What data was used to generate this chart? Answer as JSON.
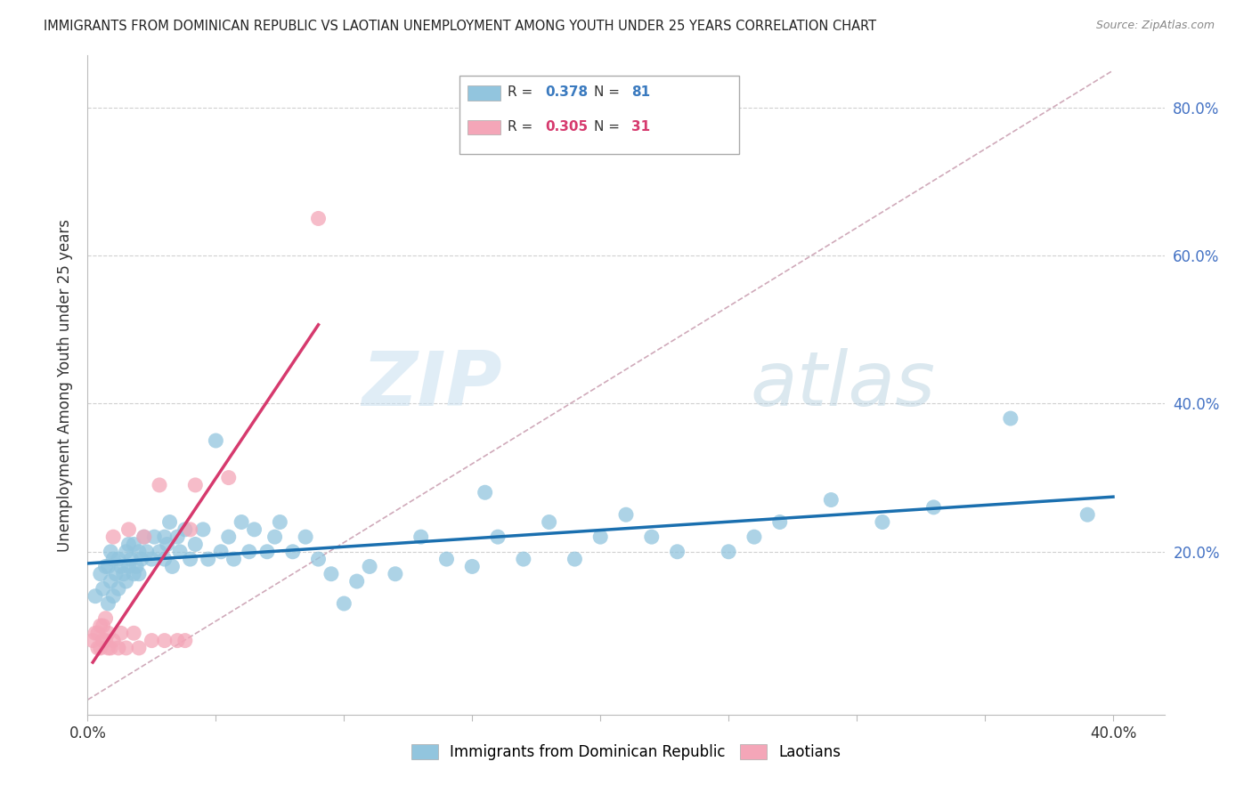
{
  "title": "IMMIGRANTS FROM DOMINICAN REPUBLIC VS LAOTIAN UNEMPLOYMENT AMONG YOUTH UNDER 25 YEARS CORRELATION CHART",
  "source": "Source: ZipAtlas.com",
  "ylabel": "Unemployment Among Youth under 25 years",
  "xlim": [
    0.0,
    0.42
  ],
  "ylim": [
    -0.02,
    0.87
  ],
  "yticks": [
    0.2,
    0.4,
    0.6,
    0.8
  ],
  "ytick_labels": [
    "20.0%",
    "40.0%",
    "60.0%",
    "80.0%"
  ],
  "xticks": [
    0.0,
    0.05,
    0.1,
    0.15,
    0.2,
    0.25,
    0.3,
    0.35,
    0.4
  ],
  "xtick_labels": [
    "0.0%",
    "",
    "",
    "",
    "",
    "",
    "",
    "",
    "40.0%"
  ],
  "blue_color": "#92c5de",
  "pink_color": "#f4a6b8",
  "blue_line_color": "#1a6faf",
  "pink_line_color": "#d63a6e",
  "grid_color": "#d0d0d0",
  "diagonal_color": "#d0aaba",
  "legend_R_blue": "0.378",
  "legend_N_blue": "81",
  "legend_R_pink": "0.305",
  "legend_N_pink": "31",
  "blue_scatter_x": [
    0.003,
    0.005,
    0.006,
    0.007,
    0.008,
    0.008,
    0.009,
    0.009,
    0.01,
    0.01,
    0.011,
    0.012,
    0.012,
    0.013,
    0.014,
    0.015,
    0.015,
    0.016,
    0.016,
    0.017,
    0.018,
    0.018,
    0.019,
    0.02,
    0.02,
    0.021,
    0.022,
    0.023,
    0.025,
    0.026,
    0.028,
    0.03,
    0.03,
    0.031,
    0.032,
    0.033,
    0.035,
    0.036,
    0.038,
    0.04,
    0.042,
    0.045,
    0.047,
    0.05,
    0.052,
    0.055,
    0.057,
    0.06,
    0.063,
    0.065,
    0.07,
    0.073,
    0.075,
    0.08,
    0.085,
    0.09,
    0.095,
    0.1,
    0.105,
    0.11,
    0.12,
    0.13,
    0.14,
    0.15,
    0.155,
    0.16,
    0.17,
    0.18,
    0.19,
    0.2,
    0.21,
    0.22,
    0.23,
    0.25,
    0.26,
    0.27,
    0.29,
    0.31,
    0.33,
    0.36,
    0.39
  ],
  "blue_scatter_y": [
    0.14,
    0.17,
    0.15,
    0.18,
    0.13,
    0.18,
    0.16,
    0.2,
    0.14,
    0.19,
    0.17,
    0.15,
    0.19,
    0.18,
    0.17,
    0.16,
    0.2,
    0.18,
    0.21,
    0.19,
    0.17,
    0.21,
    0.18,
    0.17,
    0.2,
    0.19,
    0.22,
    0.2,
    0.19,
    0.22,
    0.2,
    0.19,
    0.22,
    0.21,
    0.24,
    0.18,
    0.22,
    0.2,
    0.23,
    0.19,
    0.21,
    0.23,
    0.19,
    0.35,
    0.2,
    0.22,
    0.19,
    0.24,
    0.2,
    0.23,
    0.2,
    0.22,
    0.24,
    0.2,
    0.22,
    0.19,
    0.17,
    0.13,
    0.16,
    0.18,
    0.17,
    0.22,
    0.19,
    0.18,
    0.28,
    0.22,
    0.19,
    0.24,
    0.19,
    0.22,
    0.25,
    0.22,
    0.2,
    0.2,
    0.22,
    0.24,
    0.27,
    0.24,
    0.26,
    0.38,
    0.25
  ],
  "pink_scatter_x": [
    0.002,
    0.003,
    0.004,
    0.004,
    0.005,
    0.005,
    0.006,
    0.006,
    0.007,
    0.007,
    0.008,
    0.008,
    0.009,
    0.01,
    0.01,
    0.012,
    0.013,
    0.015,
    0.016,
    0.018,
    0.02,
    0.022,
    0.025,
    0.028,
    0.03,
    0.035,
    0.038,
    0.04,
    0.042,
    0.055,
    0.09
  ],
  "pink_scatter_y": [
    0.08,
    0.09,
    0.07,
    0.09,
    0.07,
    0.1,
    0.08,
    0.1,
    0.08,
    0.11,
    0.07,
    0.09,
    0.07,
    0.08,
    0.22,
    0.07,
    0.09,
    0.07,
    0.23,
    0.09,
    0.07,
    0.22,
    0.08,
    0.29,
    0.08,
    0.08,
    0.08,
    0.23,
    0.29,
    0.3,
    0.65
  ],
  "watermark_zip": "ZIP",
  "watermark_atlas": "atlas",
  "background": "#ffffff"
}
